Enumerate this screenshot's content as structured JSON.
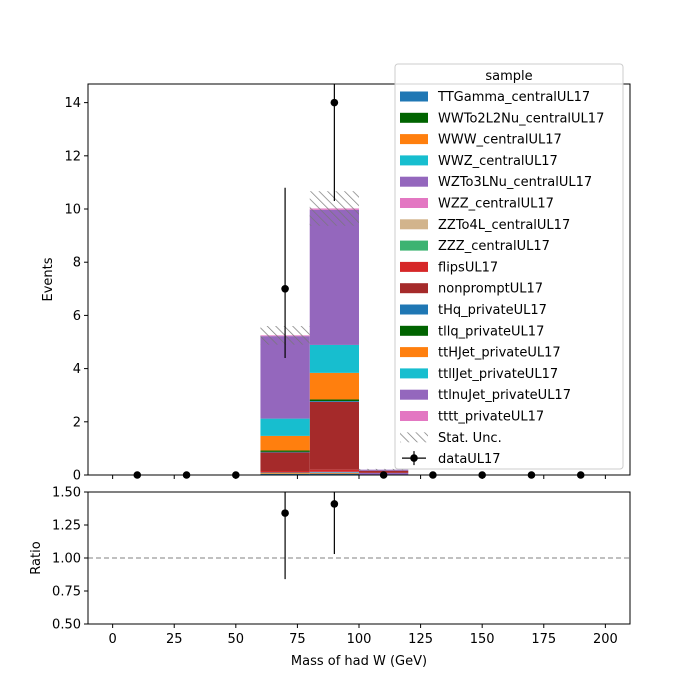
{
  "chart_data": [
    {
      "type": "bar",
      "stacked": true,
      "xlabel": "Mass of had W (GeV)",
      "ylabel": "Events",
      "xlim": [
        -10,
        210
      ],
      "ylim": [
        0,
        14.7
      ],
      "yticks": [
        0,
        2,
        4,
        6,
        8,
        10,
        12,
        14
      ],
      "xticks": [
        0,
        25,
        50,
        75,
        100,
        125,
        150,
        175,
        200
      ],
      "bin_edges": [
        0,
        20,
        40,
        60,
        80,
        100,
        120,
        140,
        160,
        180,
        200
      ],
      "series": [
        {
          "name": "TTGamma_centralUL17",
          "color": "#1f77b4",
          "values": [
            0,
            0,
            0,
            0.04,
            0.05,
            0,
            0,
            0,
            0,
            0
          ]
        },
        {
          "name": "WWTo2L2Nu_centralUL17",
          "color": "#006400",
          "values": [
            0,
            0,
            0,
            0,
            0,
            0,
            0,
            0,
            0,
            0
          ]
        },
        {
          "name": "WWW_centralUL17",
          "color": "#ff7f0e",
          "values": [
            0,
            0,
            0,
            0.03,
            0.03,
            0,
            0,
            0,
            0,
            0
          ]
        },
        {
          "name": "WWZ_centralUL17",
          "color": "#17becf",
          "values": [
            0,
            0,
            0,
            0.02,
            0.02,
            0,
            0,
            0,
            0,
            0
          ]
        },
        {
          "name": "WZTo3LNu_centralUL17",
          "color": "#9467bd",
          "values": [
            0,
            0,
            0,
            0,
            0.02,
            0.08,
            0,
            0,
            0,
            0
          ]
        },
        {
          "name": "WZZ_centralUL17",
          "color": "#e377c2",
          "values": [
            0,
            0,
            0,
            0,
            0,
            0,
            0,
            0,
            0,
            0
          ]
        },
        {
          "name": "ZZTo4L_centralUL17",
          "color": "#d2b48c",
          "values": [
            0,
            0,
            0,
            0,
            0,
            0,
            0,
            0,
            0,
            0
          ]
        },
        {
          "name": "ZZZ_centralUL17",
          "color": "#3cb371",
          "values": [
            0,
            0,
            0,
            0,
            0,
            0,
            0,
            0,
            0,
            0
          ]
        },
        {
          "name": "flipsUL17",
          "color": "#d62728",
          "values": [
            0,
            0,
            0,
            0.06,
            0.08,
            0,
            0,
            0,
            0,
            0
          ]
        },
        {
          "name": "nonpromptUL17",
          "color": "#a52a2a",
          "values": [
            0,
            0,
            0,
            0.7,
            2.55,
            0.08,
            0,
            0,
            0,
            0
          ]
        },
        {
          "name": "tHq_privateUL17",
          "color": "#1f77b4",
          "values": [
            0,
            0,
            0,
            0.02,
            0.03,
            0,
            0,
            0,
            0,
            0
          ]
        },
        {
          "name": "tllq_privateUL17",
          "color": "#006400",
          "values": [
            0,
            0,
            0,
            0.05,
            0.06,
            0,
            0,
            0,
            0,
            0
          ]
        },
        {
          "name": "ttHJet_privateUL17",
          "color": "#ff7f0e",
          "values": [
            0,
            0,
            0,
            0.55,
            1.0,
            0,
            0,
            0,
            0,
            0
          ]
        },
        {
          "name": "ttllJet_privateUL17",
          "color": "#17becf",
          "values": [
            0,
            0,
            0,
            0.65,
            1.05,
            0,
            0,
            0,
            0,
            0
          ]
        },
        {
          "name": "ttlnuJet_privateUL17",
          "color": "#9467bd",
          "values": [
            0,
            0,
            0,
            3.1,
            5.08,
            0.04,
            0,
            0,
            0,
            0
          ]
        },
        {
          "name": "tttt_privateUL17",
          "color": "#e377c2",
          "values": [
            0,
            0,
            0,
            0.03,
            0.05,
            0,
            0,
            0,
            0,
            0
          ]
        }
      ],
      "stat_unc": {
        "name": "Stat. Unc.",
        "values": [
          0,
          0,
          0,
          0.35,
          0.65,
          0.03,
          0,
          0,
          0,
          0
        ]
      },
      "data": {
        "name": "dataUL17",
        "x": [
          10,
          30,
          50,
          70,
          90,
          110,
          130,
          150,
          170,
          190
        ],
        "y": [
          0,
          0,
          0,
          7,
          14,
          0,
          0,
          0,
          0,
          0
        ],
        "err_low": [
          0,
          0,
          0,
          2.6,
          3.7,
          0,
          0,
          0,
          0,
          0
        ],
        "err_high": [
          0,
          0,
          0,
          3.8,
          4.8,
          0,
          0,
          0,
          0,
          0
        ]
      },
      "legend": {
        "title": "sample",
        "position": "top-right"
      }
    },
    {
      "type": "scatter",
      "xlabel": "Mass of had W (GeV)",
      "ylabel": "Ratio",
      "xlim": [
        -10,
        210
      ],
      "ylim": [
        0.5,
        1.5
      ],
      "yticks": [
        "0.50",
        "0.75",
        "1.00",
        "1.25",
        "1.50"
      ],
      "xticks": [
        0,
        25,
        50,
        75,
        100,
        125,
        150,
        175,
        200
      ],
      "reference_line": 1.0,
      "x": [
        70,
        90
      ],
      "y": [
        1.34,
        1.41
      ],
      "err_low": [
        0.5,
        0.38
      ],
      "err_high": [
        0.55,
        0.45
      ]
    }
  ]
}
